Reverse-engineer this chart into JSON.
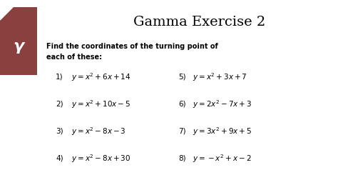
{
  "title": "Gamma Exercise 2",
  "instruction": "Find the coordinates of the turning point of\neach of these:",
  "background_color": "#ffffff",
  "header_box_color": "#8B4040",
  "gamma_letter": "γ",
  "left_items": [
    {
      "num": "1)",
      "formula": "$y=x^{2}+6x+14$"
    },
    {
      "num": "2)",
      "formula": "$y=x^{2}+10x-5$"
    },
    {
      "num": "3)",
      "formula": "$y=x^{2}-8x-3$"
    },
    {
      "num": "4)",
      "formula": "$y=x^{2}-8x+30$"
    }
  ],
  "right_items": [
    {
      "num": "5)",
      "formula": "$y=x^{2}+3x+7$"
    },
    {
      "num": "6)",
      "formula": "$y=2x^{2}-7x+3$"
    },
    {
      "num": "7)",
      "formula": "$y=3x^{2}+9x+5$"
    },
    {
      "num": "8)",
      "formula": "$y=-x^{2}+x-2$"
    }
  ],
  "title_fontsize": 14,
  "instruction_fontsize": 7,
  "item_fontsize": 7.5,
  "num_fontsize": 7.5,
  "gamma_fontsize": 16
}
